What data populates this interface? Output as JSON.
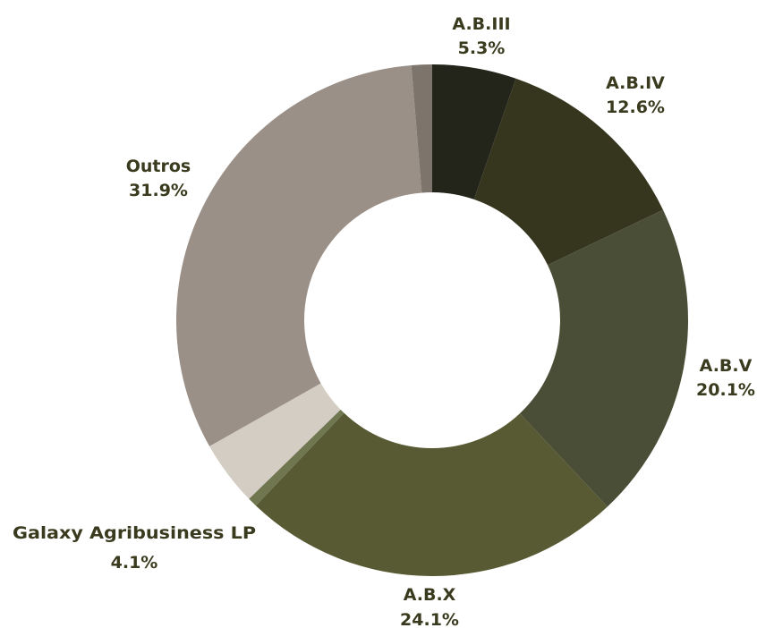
{
  "chart_data": {
    "type": "pie",
    "donut": true,
    "title": "",
    "slices": [
      {
        "label": "A.B.III",
        "value": 5.3,
        "display": "5.3%",
        "color": "#23241a"
      },
      {
        "label": "A.B.IV",
        "value": 12.6,
        "display": "12.6%",
        "color": "#36361f"
      },
      {
        "label": "A.B.V",
        "value": 20.1,
        "display": "20.1%",
        "color": "#4b4e37"
      },
      {
        "label": "A.B.X",
        "value": 24.1,
        "display": "24.1%",
        "color": "#585a33"
      },
      {
        "label": "",
        "value": 0.6,
        "display": "",
        "color": "#6f7650"
      },
      {
        "label": "Galaxy Agribusiness LP",
        "value": 4.1,
        "display": "4.1%",
        "color": "#d3cdc4"
      },
      {
        "label": "Outros",
        "value": 31.9,
        "display": "31.9%",
        "color": "#9b9087"
      },
      {
        "label": "",
        "value": 1.3,
        "display": "",
        "color": "#7d746b"
      }
    ],
    "legend": "none",
    "label_color": "#3a3a1e"
  }
}
